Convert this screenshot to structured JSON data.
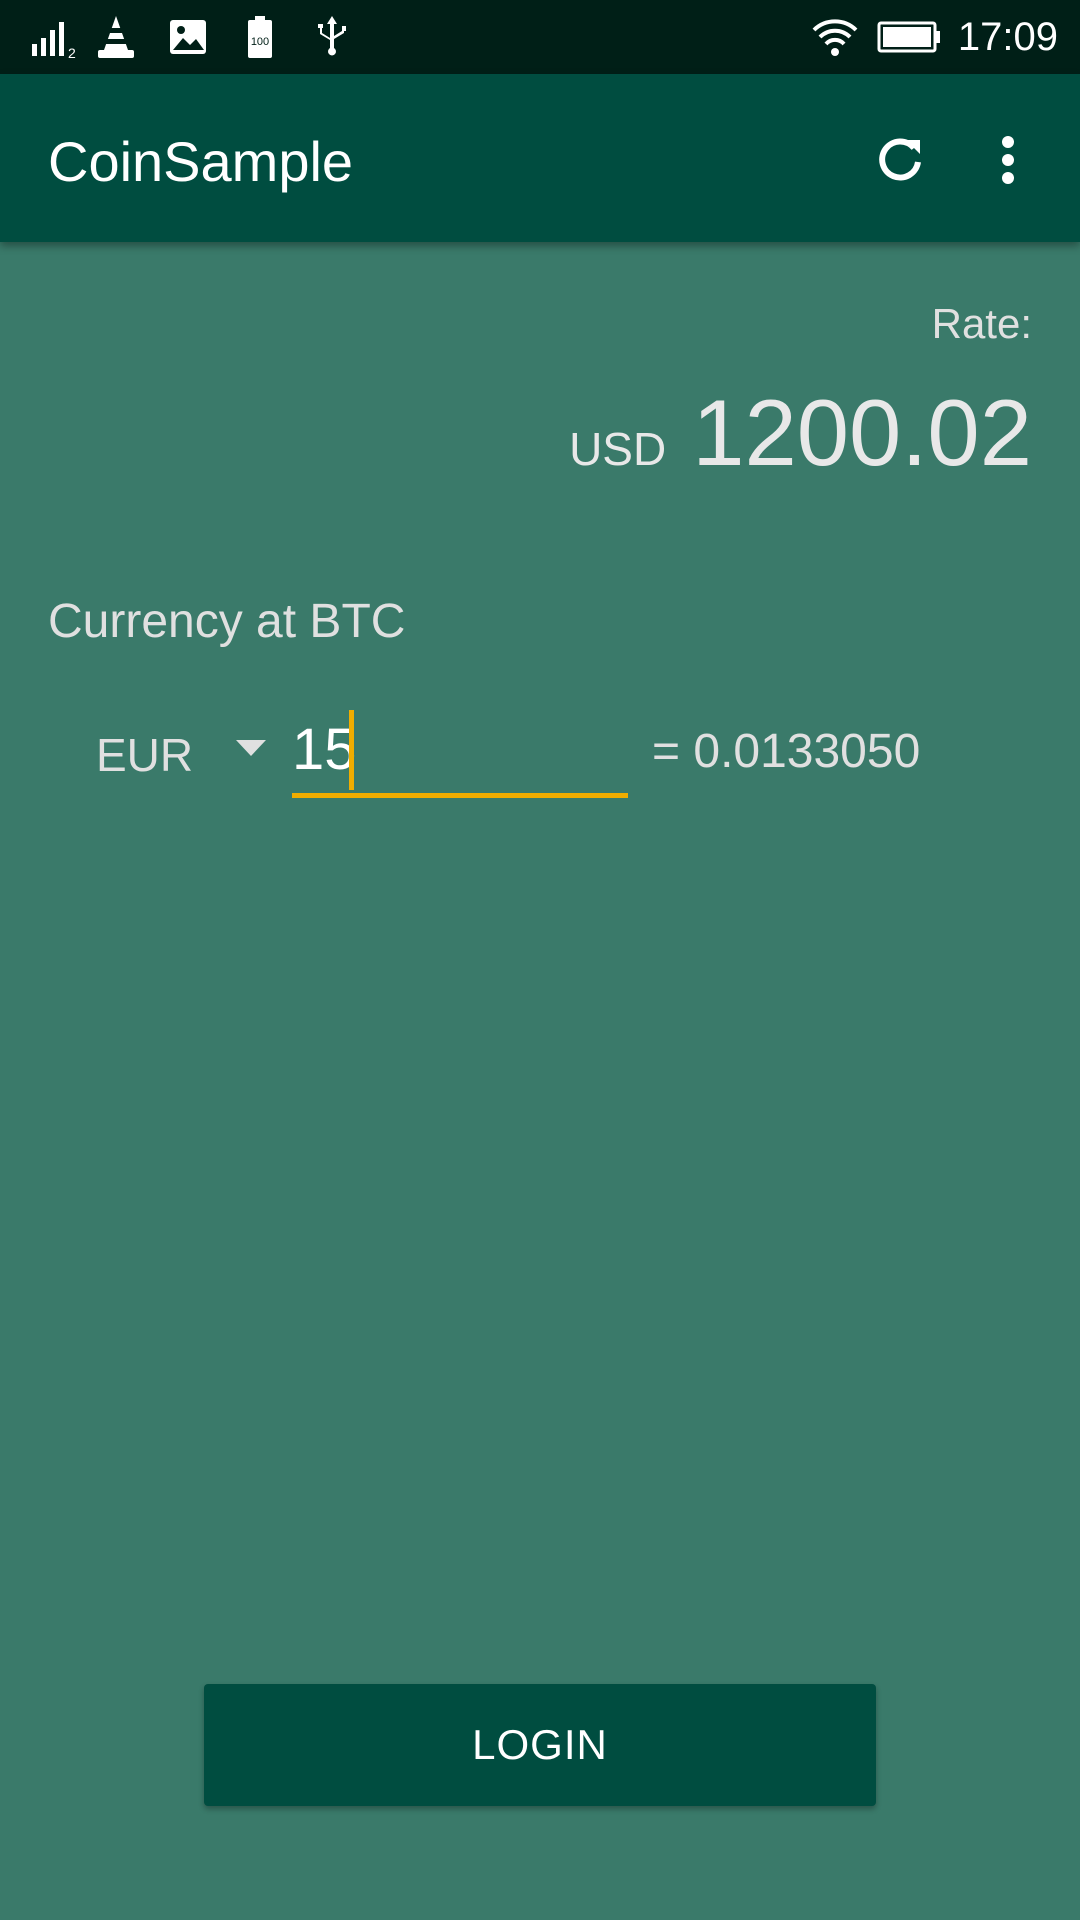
{
  "status_bar": {
    "time": "17:09",
    "battery_level_label": "100",
    "signal_sim_label": "2",
    "icons": [
      "signal-icon",
      "vlc-cone-icon",
      "image-icon",
      "battery-small-icon",
      "usb-icon",
      "wifi-icon",
      "battery-icon"
    ]
  },
  "app_bar": {
    "title": "CoinSample",
    "refresh_icon": "refresh-icon",
    "menu_icon": "more-vert-icon"
  },
  "rate": {
    "label": "Rate:",
    "currency": "USD",
    "value": "1200.02"
  },
  "converter": {
    "section_title": "Currency at BTC",
    "selected_currency": "EUR",
    "amount": "15",
    "result": "= 0.0133050"
  },
  "login_button": {
    "label": "LOGIN"
  },
  "colors": {
    "status_bar": "#001f17",
    "app_bar": "#004d40",
    "background": "#3a7a6a",
    "accent": "#f0ad00",
    "button": "#004d40"
  }
}
